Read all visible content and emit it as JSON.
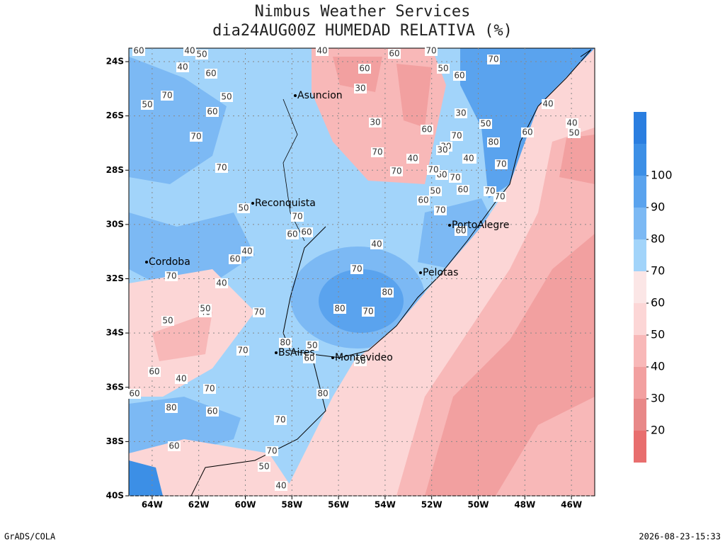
{
  "header": {
    "title": "Nimbus Weather Services",
    "subtitle": "dia24AUG00Z HUMEDAD RELATIVA (%)"
  },
  "map": {
    "lat_ticks": [
      {
        "value": -24,
        "label": "24S"
      },
      {
        "value": -26,
        "label": "26S"
      },
      {
        "value": -28,
        "label": "28S"
      },
      {
        "value": -30,
        "label": "30S"
      },
      {
        "value": -32,
        "label": "32S"
      },
      {
        "value": -34,
        "label": "34S"
      },
      {
        "value": -36,
        "label": "36S"
      },
      {
        "value": -38,
        "label": "38S"
      },
      {
        "value": -40,
        "label": "40S"
      }
    ],
    "lon_ticks": [
      {
        "value": -64,
        "label": "64W"
      },
      {
        "value": -62,
        "label": "62W"
      },
      {
        "value": -60,
        "label": "60W"
      },
      {
        "value": -58,
        "label": "58W"
      },
      {
        "value": -56,
        "label": "56W"
      },
      {
        "value": -54,
        "label": "54W"
      },
      {
        "value": -52,
        "label": "52W"
      },
      {
        "value": -50,
        "label": "50W"
      },
      {
        "value": -48,
        "label": "48W"
      },
      {
        "value": -46,
        "label": "46W"
      }
    ],
    "cities": [
      "Asuncion",
      "Reconquista",
      "Cordoba",
      "PortoAlegre",
      "Pelotas",
      "BsAires",
      "Montevideo"
    ],
    "contour_labels": [
      60,
      40,
      50,
      70,
      50,
      60,
      70,
      70,
      50,
      60,
      40,
      30,
      60,
      40,
      30,
      60,
      70,
      70,
      50,
      60,
      70,
      60,
      50,
      70,
      50,
      70,
      60,
      70,
      40,
      30,
      70,
      40,
      60,
      70,
      70,
      50,
      60,
      40,
      60,
      70,
      70,
      80,
      40,
      50,
      70,
      60,
      60,
      40,
      40,
      40,
      80,
      80,
      70,
      50,
      60,
      70,
      80,
      60,
      70,
      50,
      60,
      70,
      40,
      50,
      40,
      40,
      50,
      80,
      60,
      70,
      60,
      70,
      60,
      40,
      30,
      70,
      30,
      70,
      80,
      60,
      50
    ]
  },
  "colorbar": {
    "ticks": [
      20,
      30,
      40,
      50,
      60,
      70,
      80,
      90,
      100
    ],
    "colors": [
      "#e86e6e",
      "#e88888",
      "#f2a0a0",
      "#f8b8b8",
      "#fcd6d6",
      "#fbe6e6",
      "#a2d4fa",
      "#7cb9f4",
      "#5aa3ee",
      "#3c8fe6",
      "#2a7ee0"
    ]
  },
  "footer": {
    "left": "GrADS/COLA",
    "right": "2026-08-23-15:33"
  }
}
